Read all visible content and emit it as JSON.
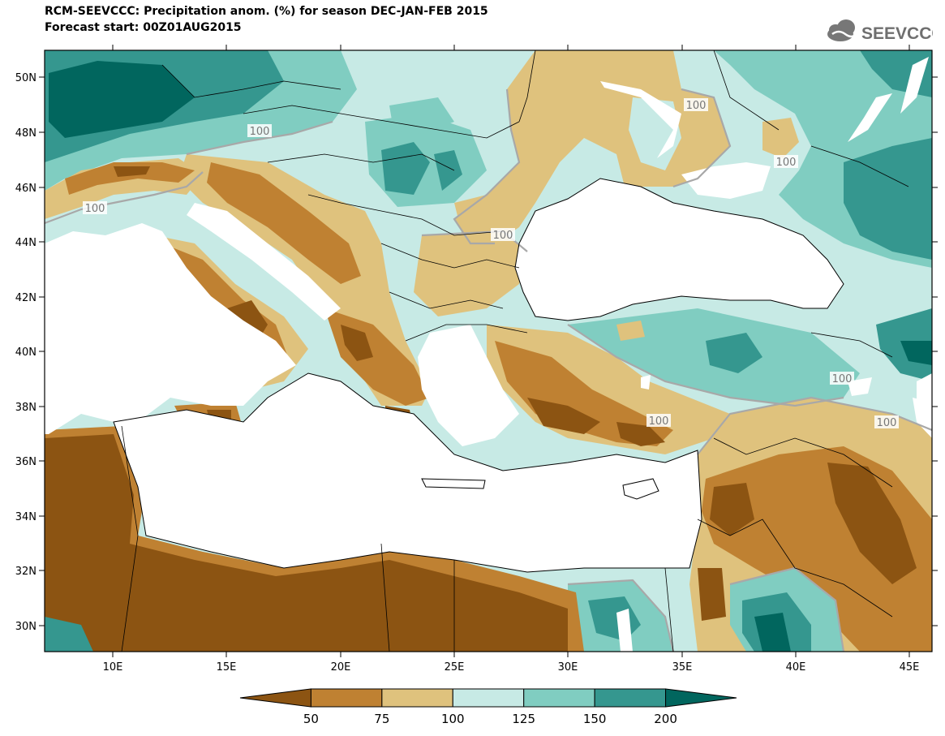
{
  "title": {
    "line1": "RCM-SEEVCCC: Precipitation anom. (%) for season DEC-JAN-FEB 2015",
    "line2": "Forecast start: 00Z01AUG2015"
  },
  "logo": {
    "text": "SEEVCCC",
    "icon": "cloud-icon"
  },
  "axes": {
    "lat_labels": [
      "50N",
      "48N",
      "46N",
      "44N",
      "42N",
      "40N",
      "38N",
      "36N",
      "34N",
      "32N",
      "30N"
    ],
    "lon_labels": [
      "10E",
      "15E",
      "20E",
      "25E",
      "30E",
      "35E",
      "40E",
      "45E"
    ]
  },
  "contour_labels": [
    "100",
    "100",
    "100",
    "100",
    "100",
    "100",
    "100",
    "100"
  ],
  "colorbar": {
    "labels": [
      "50",
      "75",
      "100",
      "125",
      "150",
      "200"
    ],
    "colors": [
      "#8c5412",
      "#bf8132",
      "#dfc27d",
      "#c7eae5",
      "#80cdc1",
      "#35978f",
      "#01665e"
    ]
  },
  "colors": {
    "land_nodata": "#ffffff",
    "border": "#000000",
    "contour": "#a0a0a0"
  }
}
